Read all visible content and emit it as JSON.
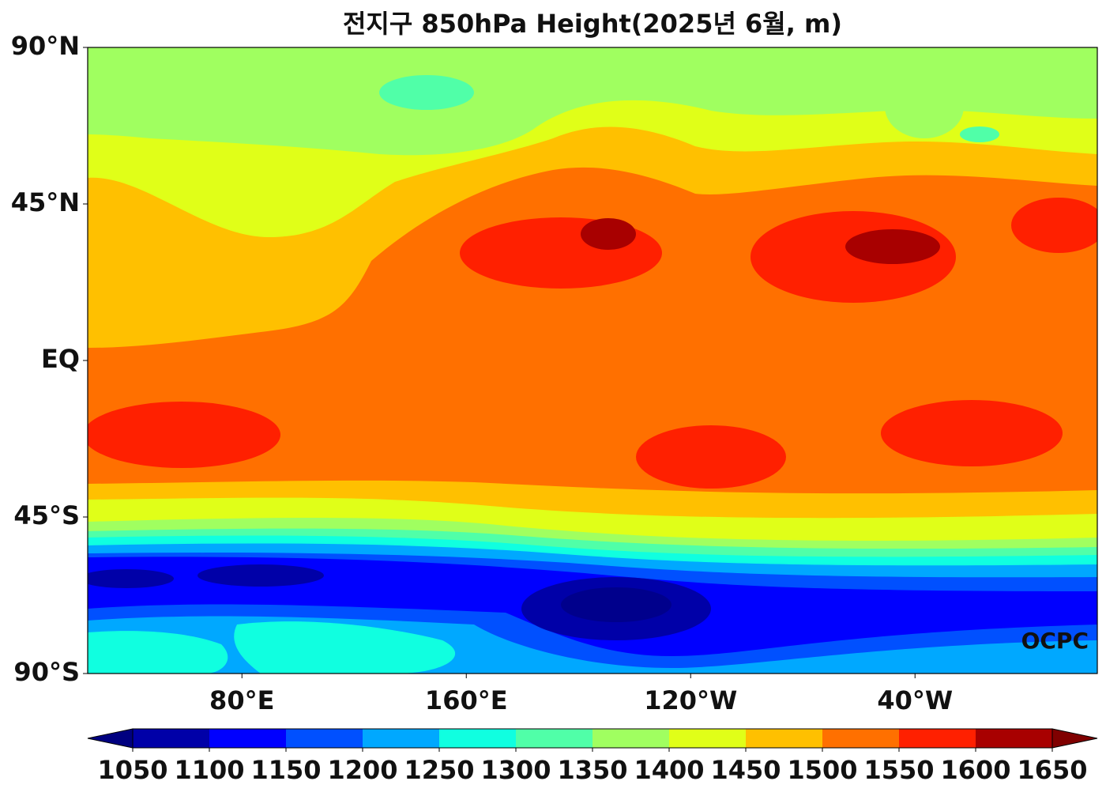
{
  "title": "전지구 850hPa Height(2025년 6월, m)",
  "map": {
    "xlim": [
      25,
      385
    ],
    "ylim": [
      -90,
      90
    ],
    "lat_ticks": [
      {
        "value": 90,
        "label": "90°N"
      },
      {
        "value": 45,
        "label": "45°N"
      },
      {
        "value": 0,
        "label": "EQ"
      },
      {
        "value": -45,
        "label": "45°S"
      },
      {
        "value": -90,
        "label": "90°S"
      }
    ],
    "lon_ticks": [
      {
        "value": 80,
        "label": "80°E"
      },
      {
        "value": 160,
        "label": "160°E"
      },
      {
        "value": 240,
        "label": "120°W"
      },
      {
        "value": 320,
        "label": "40°W"
      }
    ],
    "watermark": "OCPC"
  },
  "colorbar": {
    "ticks": [
      1050,
      1100,
      1150,
      1200,
      1250,
      1300,
      1350,
      1400,
      1450,
      1500,
      1550,
      1600,
      1650
    ],
    "colors": [
      "#0000a8",
      "#0000ff",
      "#0050ff",
      "#00a8ff",
      "#10ffe0",
      "#50ffa8",
      "#a0ff60",
      "#e0ff18",
      "#ffc000",
      "#ff7000",
      "#ff2000",
      "#a80000"
    ],
    "under_color": "#000080",
    "over_color": "#800000"
  }
}
